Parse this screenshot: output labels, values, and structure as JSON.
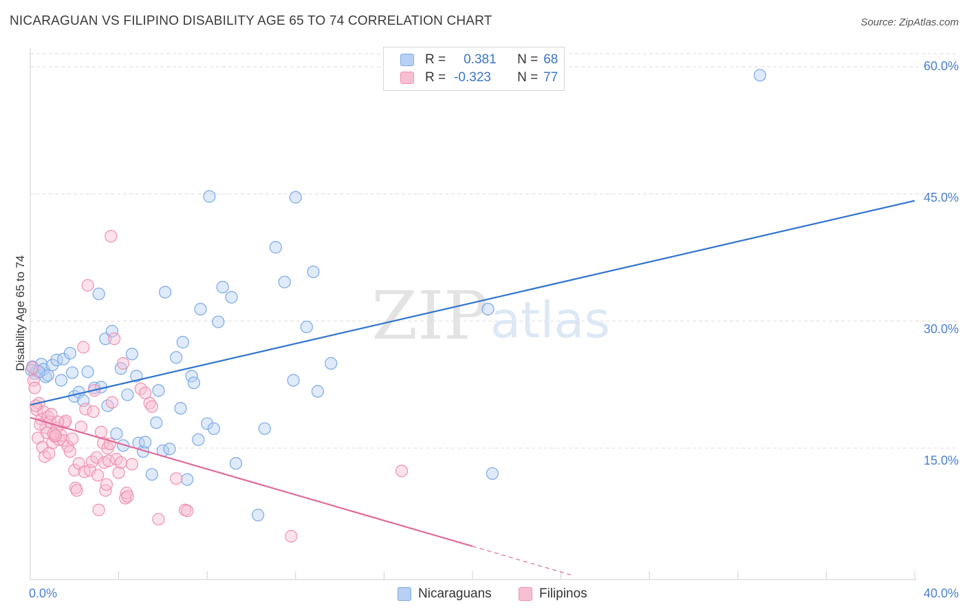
{
  "title": "NICARAGUAN VS FILIPINO DISABILITY AGE 65 TO 74 CORRELATION CHART",
  "source": "Source: ZipAtlas.com",
  "watermark": {
    "zip": "ZIP",
    "atlas": "atlas"
  },
  "colors": {
    "blue": "#7aa8e8",
    "blue_fill": "#b8d0f3",
    "blue_line": "#2f74cf",
    "pink": "#f08fae",
    "pink_fill": "#f7bfd2",
    "pink_line": "#e0699a",
    "tick": "#4a7fd0",
    "grid": "#dcdcdc"
  },
  "legend": {
    "r_label": "R =",
    "n_label": "N =",
    "rows": [
      {
        "r": "0.381",
        "n": "68",
        "series": "blue"
      },
      {
        "r": "-0.323",
        "n": "77",
        "series": "pink"
      }
    ]
  },
  "chart_data": {
    "type": "scatter",
    "title": "NICARAGUAN VS FILIPINO DISABILITY AGE 65 TO 74 CORRELATION CHART",
    "xlabel": "",
    "ylabel": "Disability Age 65 to 74",
    "xlim": [
      0,
      40
    ],
    "ylim": [
      0,
      62.5
    ],
    "x_tick_labels": [
      "0.0%",
      "40.0%"
    ],
    "y_ticks": [
      15,
      30,
      45,
      60
    ],
    "y_tick_labels": [
      "15.0%",
      "30.0%",
      "45.0%",
      "60.0%"
    ],
    "grid": true,
    "series": [
      {
        "name": "Nicaraguans",
        "color": "blue",
        "trend": {
          "x0": 0,
          "y0": 20.1,
          "x1": 40,
          "y1": 44.2,
          "dash_from": 40
        },
        "points": [
          [
            0.1,
            24.6
          ],
          [
            0.2,
            23.8
          ],
          [
            0.3,
            24.1
          ],
          [
            0.5,
            24.9
          ],
          [
            0.6,
            24.3
          ],
          [
            0.7,
            23.4
          ],
          [
            0.8,
            23.6
          ],
          [
            1.0,
            24.8
          ],
          [
            1.2,
            25.4
          ],
          [
            1.4,
            23.0
          ],
          [
            1.5,
            25.5
          ],
          [
            1.8,
            26.2
          ],
          [
            1.9,
            23.9
          ],
          [
            2.0,
            21.1
          ],
          [
            2.2,
            21.6
          ],
          [
            2.4,
            20.6
          ],
          [
            2.6,
            24.0
          ],
          [
            2.9,
            22.1
          ],
          [
            3.1,
            33.2
          ],
          [
            3.2,
            22.2
          ],
          [
            3.4,
            27.9
          ],
          [
            3.5,
            20.0
          ],
          [
            3.7,
            28.8
          ],
          [
            3.9,
            16.7
          ],
          [
            4.1,
            24.4
          ],
          [
            4.2,
            15.3
          ],
          [
            4.4,
            21.3
          ],
          [
            4.6,
            26.1
          ],
          [
            4.8,
            23.5
          ],
          [
            4.9,
            15.6
          ],
          [
            5.1,
            14.6
          ],
          [
            5.2,
            15.7
          ],
          [
            5.5,
            11.9
          ],
          [
            5.7,
            18.0
          ],
          [
            5.8,
            21.8
          ],
          [
            6.0,
            14.7
          ],
          [
            6.1,
            33.4
          ],
          [
            6.3,
            14.9
          ],
          [
            6.6,
            25.7
          ],
          [
            6.8,
            19.7
          ],
          [
            6.9,
            27.5
          ],
          [
            7.1,
            11.3
          ],
          [
            7.3,
            23.5
          ],
          [
            7.4,
            22.7
          ],
          [
            7.6,
            16.0
          ],
          [
            7.7,
            31.4
          ],
          [
            8.0,
            17.9
          ],
          [
            8.1,
            44.7
          ],
          [
            8.3,
            17.3
          ],
          [
            8.5,
            29.9
          ],
          [
            8.7,
            34.0
          ],
          [
            9.1,
            32.8
          ],
          [
            9.3,
            13.2
          ],
          [
            10.3,
            7.1
          ],
          [
            10.6,
            17.3
          ],
          [
            11.1,
            38.7
          ],
          [
            11.5,
            34.6
          ],
          [
            11.9,
            23.0
          ],
          [
            12.0,
            44.6
          ],
          [
            12.5,
            29.3
          ],
          [
            12.8,
            35.8
          ],
          [
            13.0,
            21.7
          ],
          [
            13.6,
            25.0
          ],
          [
            20.7,
            31.4
          ],
          [
            20.9,
            12.0
          ],
          [
            33.0,
            59.0
          ],
          [
            0.05,
            24.2
          ],
          [
            0.4,
            24.0
          ]
        ]
      },
      {
        "name": "Filipinos",
        "color": "pink",
        "trend": {
          "x0": 0,
          "y0": 18.6,
          "x1": 24.5,
          "y1": 0,
          "dash_from": 20
        },
        "points": [
          [
            0.1,
            24.5
          ],
          [
            0.15,
            23.0
          ],
          [
            0.2,
            22.1
          ],
          [
            0.3,
            19.5
          ],
          [
            0.4,
            20.3
          ],
          [
            0.5,
            18.4
          ],
          [
            0.6,
            19.3
          ],
          [
            0.7,
            17.4
          ],
          [
            0.8,
            18.7
          ],
          [
            0.9,
            18.1
          ],
          [
            1.0,
            15.6
          ],
          [
            1.1,
            16.4
          ],
          [
            1.2,
            17.4
          ],
          [
            1.3,
            16.0
          ],
          [
            1.4,
            16.5
          ],
          [
            1.5,
            15.9
          ],
          [
            1.55,
            18.0
          ],
          [
            1.6,
            18.2
          ],
          [
            1.7,
            15.2
          ],
          [
            1.8,
            14.6
          ],
          [
            1.9,
            16.1
          ],
          [
            2.0,
            12.4
          ],
          [
            2.05,
            10.3
          ],
          [
            2.1,
            10.0
          ],
          [
            2.2,
            13.2
          ],
          [
            2.3,
            17.5
          ],
          [
            2.4,
            26.9
          ],
          [
            2.45,
            12.2
          ],
          [
            2.5,
            19.6
          ],
          [
            2.6,
            34.2
          ],
          [
            2.7,
            12.4
          ],
          [
            2.8,
            13.4
          ],
          [
            2.85,
            19.3
          ],
          [
            2.9,
            21.8
          ],
          [
            3.0,
            13.9
          ],
          [
            3.05,
            11.8
          ],
          [
            3.1,
            7.7
          ],
          [
            3.2,
            16.9
          ],
          [
            3.3,
            15.6
          ],
          [
            3.35,
            13.3
          ],
          [
            3.4,
            10.0
          ],
          [
            3.45,
            10.7
          ],
          [
            3.5,
            15.0
          ],
          [
            3.55,
            13.5
          ],
          [
            3.6,
            15.5
          ],
          [
            3.65,
            40.0
          ],
          [
            3.7,
            20.4
          ],
          [
            3.8,
            27.9
          ],
          [
            3.9,
            13.7
          ],
          [
            4.0,
            12.1
          ],
          [
            4.1,
            13.3
          ],
          [
            4.2,
            25.0
          ],
          [
            4.3,
            9.1
          ],
          [
            4.35,
            9.7
          ],
          [
            4.4,
            9.3
          ],
          [
            4.6,
            13.1
          ],
          [
            5.0,
            22.0
          ],
          [
            5.2,
            21.5
          ],
          [
            5.4,
            20.3
          ],
          [
            5.5,
            19.9
          ],
          [
            5.8,
            6.6
          ],
          [
            6.6,
            11.4
          ],
          [
            7.0,
            7.7
          ],
          [
            7.1,
            7.6
          ],
          [
            11.8,
            4.6
          ],
          [
            16.8,
            12.3
          ],
          [
            0.25,
            20.0
          ],
          [
            0.35,
            16.2
          ],
          [
            0.45,
            17.8
          ],
          [
            0.55,
            15.1
          ],
          [
            0.65,
            14.0
          ],
          [
            0.75,
            16.8
          ],
          [
            0.85,
            14.4
          ],
          [
            0.95,
            19.0
          ],
          [
            1.05,
            16.7
          ],
          [
            1.15,
            16.5
          ],
          [
            1.25,
            18.1
          ]
        ]
      }
    ]
  },
  "bottom_legend": [
    {
      "label": "Nicaraguans",
      "series": "blue"
    },
    {
      "label": "Filipinos",
      "series": "pink"
    }
  ]
}
